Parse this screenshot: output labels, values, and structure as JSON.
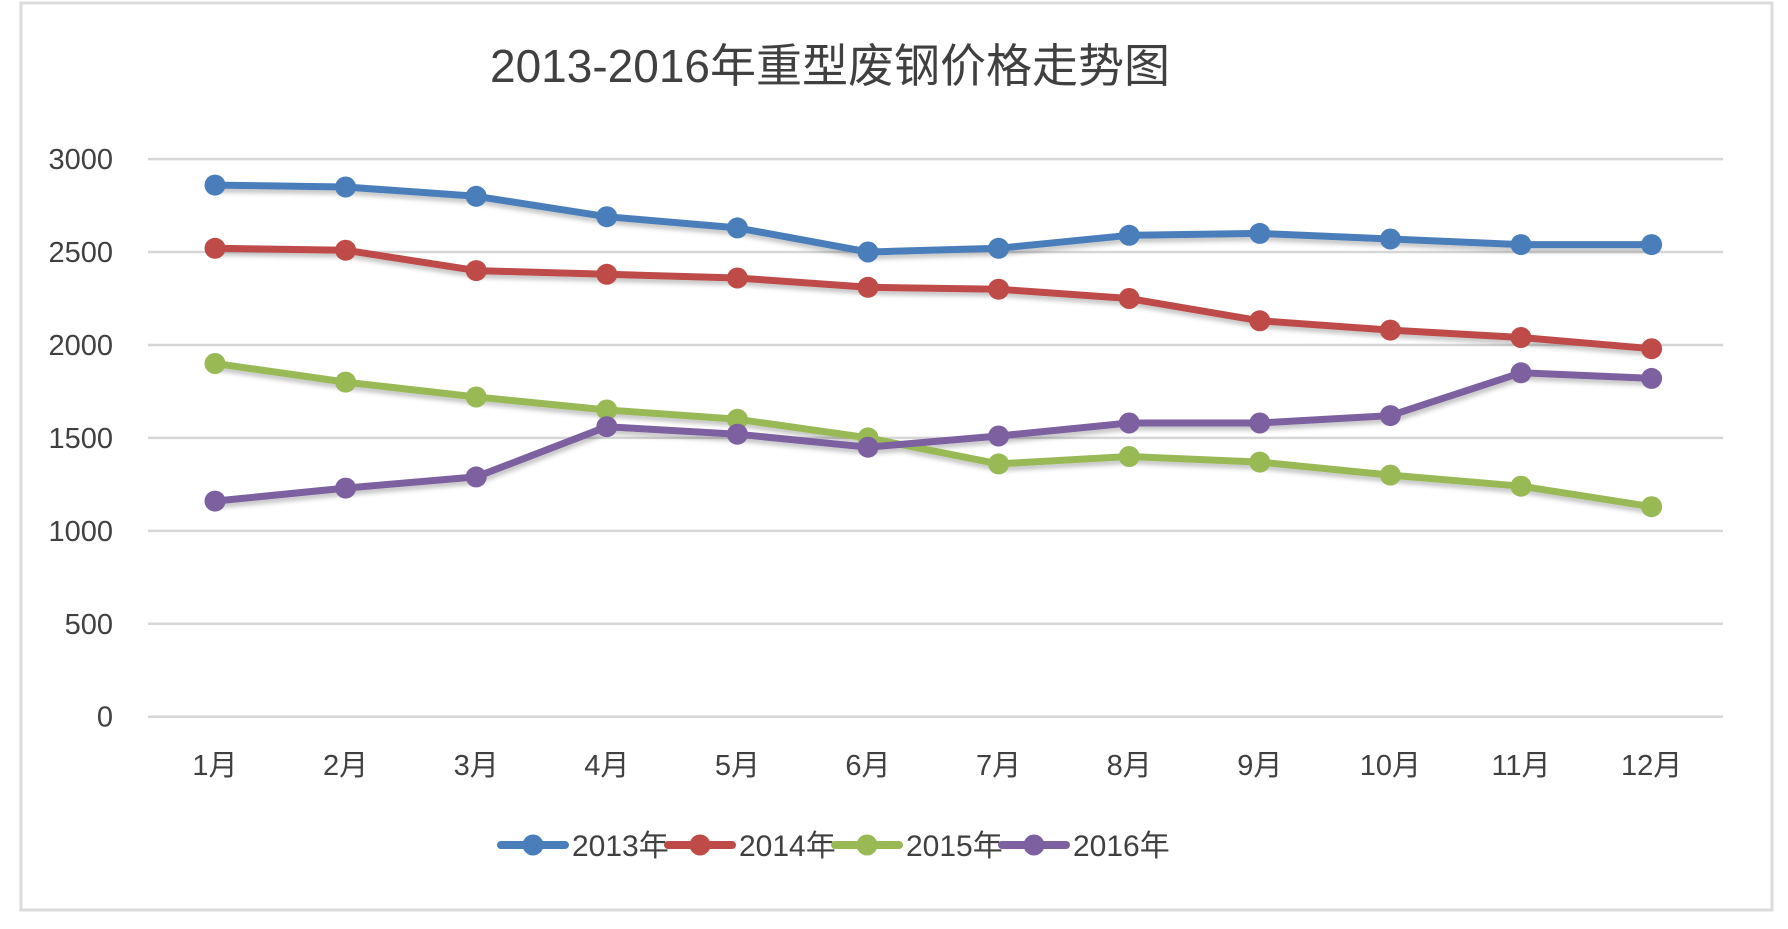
{
  "chart_data": {
    "type": "line",
    "title": "2013-2016年重型废钢价格走势图",
    "categories": [
      "1月",
      "2月",
      "3月",
      "4月",
      "5月",
      "6月",
      "7月",
      "8月",
      "9月",
      "10月",
      "11月",
      "12月"
    ],
    "series": [
      {
        "name": "2013年",
        "color": "#4A7EBB",
        "values": [
          2860,
          2850,
          2800,
          2690,
          2630,
          2500,
          2520,
          2590,
          2600,
          2570,
          2540,
          2540
        ]
      },
      {
        "name": "2014年",
        "color": "#BE4B48",
        "values": [
          2520,
          2510,
          2400,
          2380,
          2360,
          2310,
          2300,
          2250,
          2130,
          2080,
          2040,
          1980
        ]
      },
      {
        "name": "2015年",
        "color": "#98B954",
        "values": [
          1900,
          1800,
          1720,
          1650,
          1600,
          1500,
          1360,
          1400,
          1370,
          1300,
          1240,
          1130
        ]
      },
      {
        "name": "2016年",
        "color": "#7D60A0",
        "values": [
          1160,
          1230,
          1290,
          1560,
          1520,
          1450,
          1510,
          1580,
          1580,
          1620,
          1850,
          1820
        ]
      }
    ],
    "ylim": [
      0,
      3000
    ],
    "ytick_step": 500,
    "yticks": [
      "0",
      "500",
      "1000",
      "1500",
      "2000",
      "2500",
      "3000"
    ],
    "grid": "horizontal-only",
    "legend_position": "bottom",
    "xlabel": "",
    "ylabel": ""
  },
  "style": {
    "background": "#FFFFFF",
    "frame_border_color": "#DBDBDB",
    "gridline_color": "#D6D6D6",
    "text_color": "#404040"
  }
}
